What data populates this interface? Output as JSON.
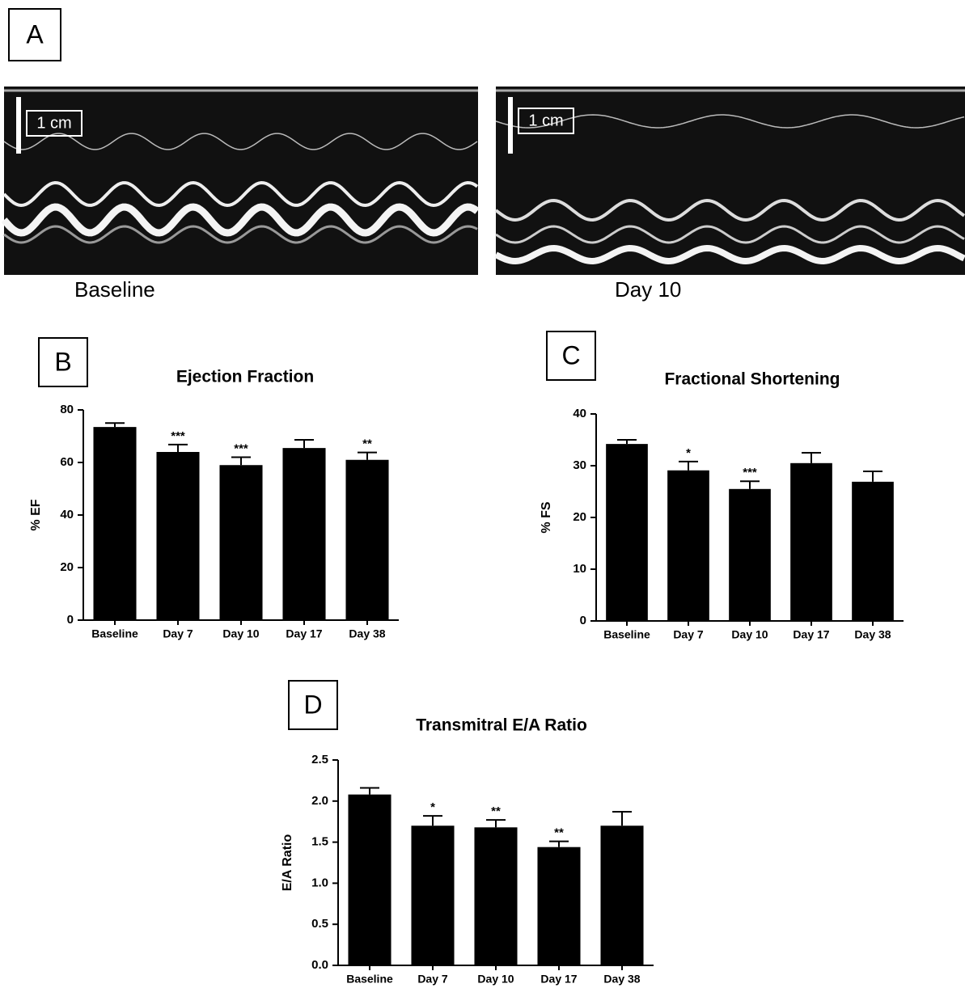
{
  "panel_a": {
    "label": "A",
    "images": [
      {
        "scale": "1 cm",
        "caption": "Baseline"
      },
      {
        "scale": "1 cm",
        "caption": "Day 10"
      }
    ]
  },
  "chart_data": [
    {
      "type": "bar",
      "panel": "B",
      "title": "Ejection Fraction",
      "y_label": "% EF",
      "categories": [
        "Baseline",
        "Day 7",
        "Day 10",
        "Day 17",
        "Day 38"
      ],
      "values": [
        73.5,
        64,
        59,
        65.5,
        61
      ],
      "errors": [
        1.5,
        2.8,
        3,
        3.1,
        2.8
      ],
      "annotations": [
        null,
        "***",
        "***",
        null,
        "**"
      ],
      "color": "#000000",
      "ylim": [
        0,
        80
      ],
      "yticks": [
        0,
        20,
        40,
        60,
        80
      ]
    },
    {
      "type": "bar",
      "panel": "C",
      "title": "Fractional Shortening",
      "y_label": "% FS",
      "categories": [
        "Baseline",
        "Day 7",
        "Day 10",
        "Day 17",
        "Day 38"
      ],
      "values": [
        34.2,
        29.1,
        25.5,
        30.5,
        26.9
      ],
      "errors": [
        0.8,
        1.7,
        1.5,
        2,
        2
      ],
      "annotations": [
        null,
        "*",
        "***",
        null,
        null
      ],
      "color": "#000000",
      "ylim": [
        0,
        40
      ],
      "yticks": [
        0,
        10,
        20,
        30,
        40
      ]
    },
    {
      "type": "bar",
      "panel": "D",
      "title": "Transmitral E/A Ratio",
      "y_label": "E/A Ratio",
      "categories": [
        "Baseline",
        "Day 7",
        "Day 10",
        "Day 17",
        "Day 38"
      ],
      "values": [
        2.08,
        1.7,
        1.68,
        1.44,
        1.7
      ],
      "errors": [
        0.08,
        0.12,
        0.09,
        0.07,
        0.17
      ],
      "annotations": [
        null,
        "*",
        "**",
        "**",
        null
      ],
      "color": "#000000",
      "ylim": [
        0,
        2.5
      ],
      "yticks": [
        {
          "value": 0,
          "label": "0.0"
        },
        0.5,
        {
          "value": 1,
          "label": "1.0"
        },
        1.5,
        {
          "value": 2,
          "label": "2.0"
        },
        2.5
      ]
    }
  ]
}
